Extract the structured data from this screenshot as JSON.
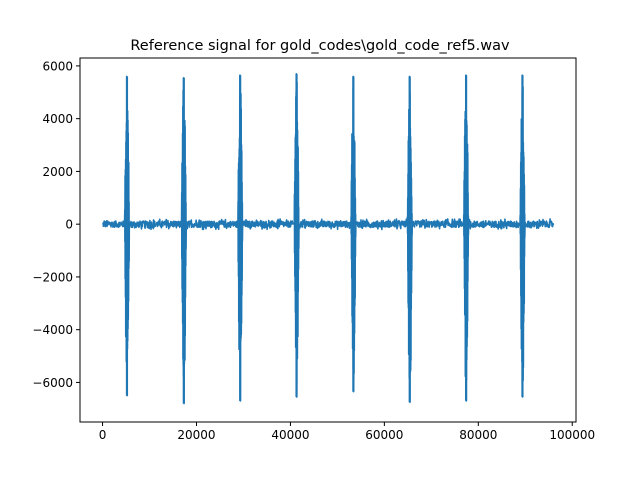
{
  "chart_data": {
    "type": "line",
    "title": "Reference signal for gold_codes\\gold_code_ref5.wav",
    "xlabel": "",
    "ylabel": "",
    "xlim": [
      -4800,
      100800
    ],
    "ylim": [
      -7500,
      6300
    ],
    "x_ticks": [
      0,
      20000,
      40000,
      60000,
      80000,
      100000
    ],
    "x_tick_labels": [
      "0",
      "20000",
      "40000",
      "60000",
      "80000",
      "100000"
    ],
    "y_ticks": [
      -6000,
      -4000,
      -2000,
      0,
      2000,
      4000,
      6000
    ],
    "y_tick_labels": [
      "−6000",
      "−4000",
      "−2000",
      "0",
      "2000",
      "4000",
      "6000"
    ],
    "grid": false,
    "legend": "none",
    "series": [
      {
        "color": "#1f77b4",
        "x_range": [
          0,
          96000
        ],
        "baseline_noise_amplitude": 200,
        "peaks": [
          {
            "x": 5200,
            "max": 5600,
            "min": -6500
          },
          {
            "x": 17300,
            "max": 5550,
            "min": -6800
          },
          {
            "x": 29300,
            "max": 5650,
            "min": -6700
          },
          {
            "x": 41300,
            "max": 5700,
            "min": -6550
          },
          {
            "x": 53400,
            "max": 5600,
            "min": -6350
          },
          {
            "x": 65400,
            "max": 5600,
            "min": -6750
          },
          {
            "x": 77400,
            "max": 5650,
            "min": -6700
          },
          {
            "x": 89400,
            "max": 5650,
            "min": -6550
          }
        ]
      }
    ]
  }
}
